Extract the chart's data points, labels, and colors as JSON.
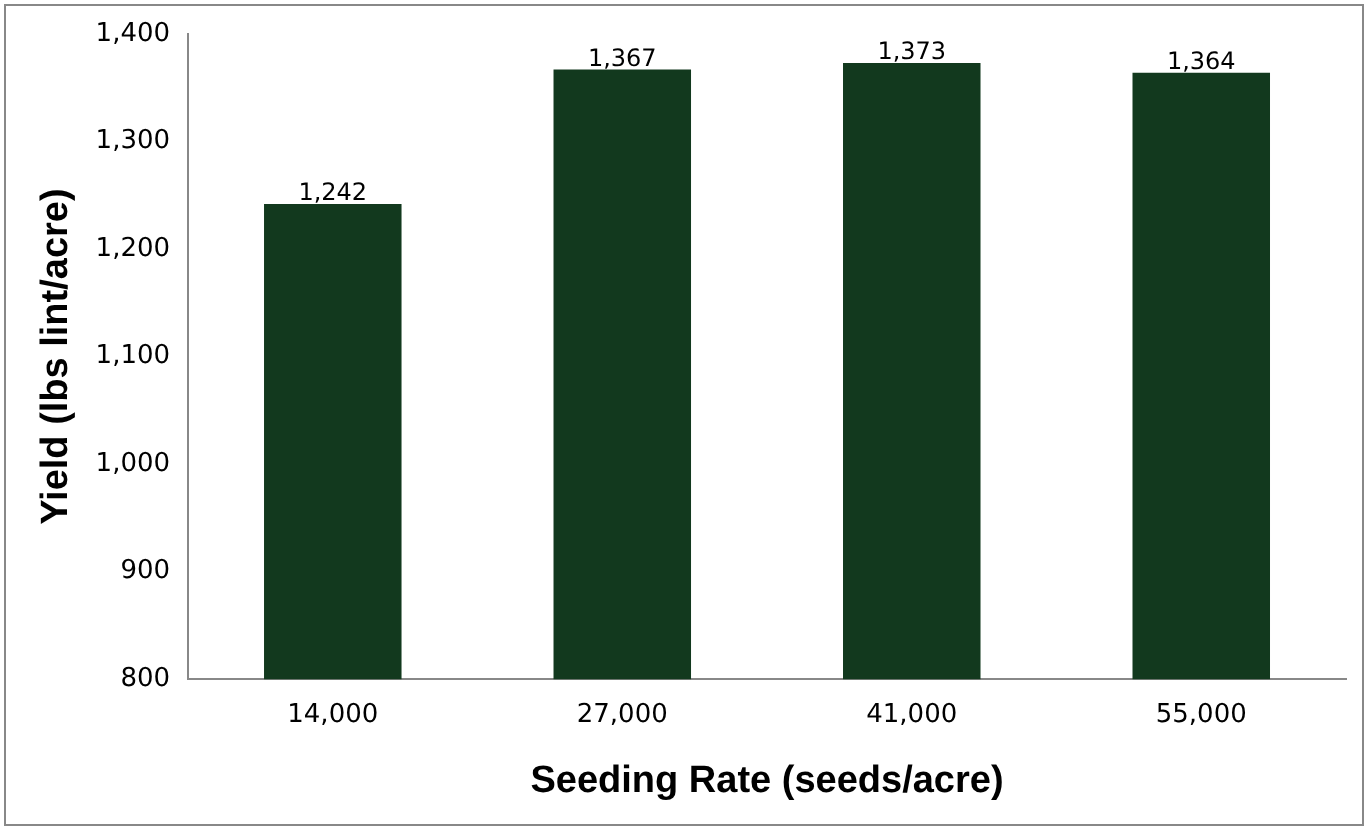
{
  "chart_data": {
    "type": "bar",
    "xlabel": "Seeding Rate (seeds/acre)",
    "ylabel": "Yield (lbs lint/acre)",
    "categories": [
      "14,000",
      "27,000",
      "41,000",
      "55,000"
    ],
    "values": [
      1242,
      1367,
      1373,
      1364
    ],
    "value_labels": [
      "1,242",
      "1,367",
      "1,373",
      "1,364"
    ],
    "color": "#12391e",
    "ylim": [
      800,
      1400
    ],
    "yticks": [
      {
        "value": 800,
        "label": "800"
      },
      {
        "value": 900,
        "label": "900"
      },
      {
        "value": 1000,
        "label": "1,000"
      },
      {
        "value": 1100,
        "label": "1,100"
      },
      {
        "value": 1200,
        "label": "1,200"
      },
      {
        "value": 1300,
        "label": "1,300"
      },
      {
        "value": 1400,
        "label": "1,400"
      }
    ],
    "grid": false,
    "legend": false
  }
}
